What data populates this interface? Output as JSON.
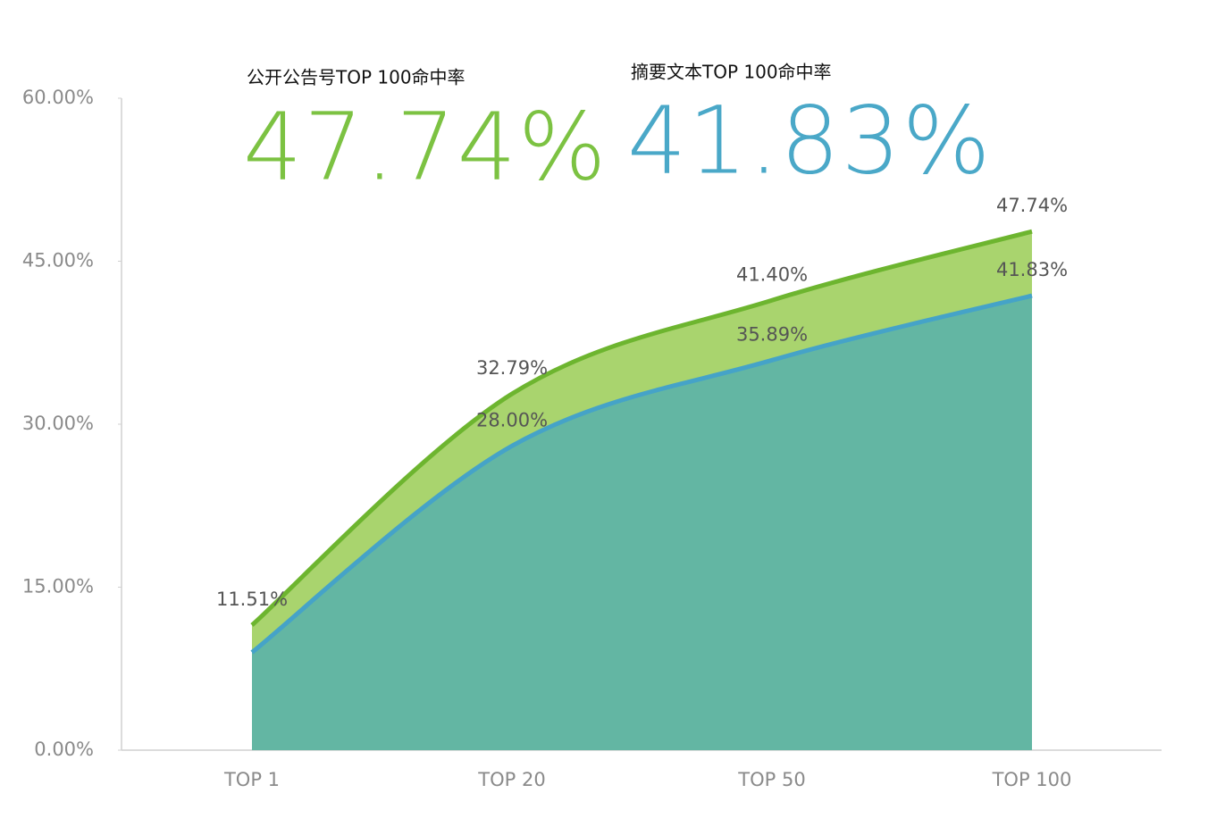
{
  "chart_data": {
    "type": "area",
    "categories": [
      "TOP 1",
      "TOP 20",
      "TOP 50",
      "TOP 100"
    ],
    "series": [
      {
        "name": "公开公告号TOP 100命中率",
        "headline": "47.74%",
        "color": "#6db52f",
        "fill": "#a9d46e",
        "headline_color": "#7cc242",
        "values": [
          11.51,
          32.79,
          41.4,
          47.74
        ],
        "value_labels": [
          "11.51%",
          "32.79%",
          "41.40%",
          "47.74%"
        ]
      },
      {
        "name": "摘要文本TOP 100命中率",
        "headline": "41.83%",
        "color": "#45a3c8",
        "fill": "#63b6a3",
        "headline_color": "#4aa8c8",
        "values": [
          9.0,
          28.0,
          35.89,
          41.83
        ],
        "value_labels": [
          null,
          "28.00%",
          "35.89%",
          "41.83%"
        ]
      }
    ],
    "ylim": [
      0,
      60
    ],
    "yticks": [
      {
        "value": 0,
        "label": "0.00%"
      },
      {
        "value": 15,
        "label": "15.00%"
      },
      {
        "value": 30,
        "label": "30.00%"
      },
      {
        "value": 45,
        "label": "45.00%"
      },
      {
        "value": 60,
        "label": "60.00%"
      }
    ]
  }
}
